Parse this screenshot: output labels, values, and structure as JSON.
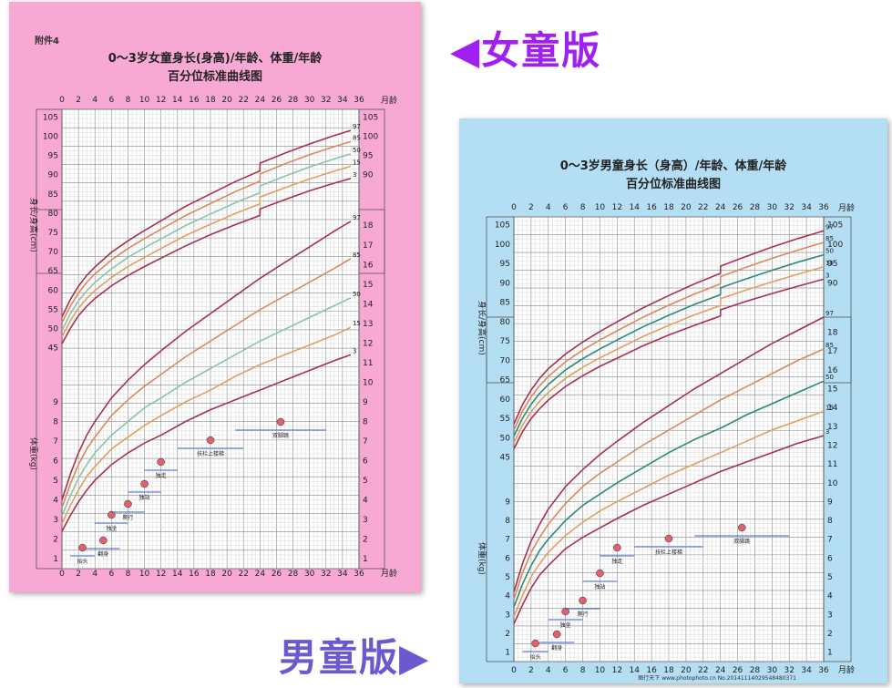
{
  "captions": {
    "girl": "◀女童版",
    "boy": "男童版▶"
  },
  "colors": {
    "girl_bg": "#f7a9d4",
    "boy_bg": "#b3def4",
    "grid": "#9a9a9a",
    "curve_97": "#a8304f",
    "curve_85": "#d88a5c",
    "curve_50_girl": "#88c4ac",
    "curve_50_boy": "#2a8a7c",
    "curve_15": "#e0a060",
    "curve_3": "#a8304f",
    "caption_girl": "#a020f0",
    "caption_boy": "#6a5acd"
  },
  "girl_chart": {
    "attachment_label": "附件4",
    "title_line1": "0～3岁女童身长(身高)/年龄、体重/年龄",
    "title_line2": "百分位标准曲线图",
    "x_unit": "月龄",
    "height_axis_label": "身长/身高(cm)",
    "weight_axis_label": "体重(kg)",
    "milestones": [
      "抬头",
      "翻身",
      "独坐",
      "爬行",
      "独站",
      "独走",
      "扶栏上楼梯",
      "双脚跳"
    ]
  },
  "boy_chart": {
    "title_line1": "0～3岁男童身长（身高）/年龄、体重/年龄",
    "title_line2": "百分位标准曲线图",
    "x_unit": "月龄",
    "height_axis_label": "身长/身高(cm)",
    "weight_axis_label": "体重(kg)",
    "milestones": [
      "抬头",
      "翻身",
      "独坐",
      "爬行",
      "独站",
      "独走",
      "扶栏上楼梯",
      "双脚跳"
    ],
    "footer": "图行天下 www.photophoto.cn No.20141114029548480371"
  },
  "chart_data": [
    {
      "type": "line",
      "name_hint": "girl",
      "x_ticks": [
        0,
        2,
        4,
        6,
        8,
        10,
        12,
        14,
        16,
        18,
        20,
        22,
        24,
        26,
        28,
        30,
        32,
        34,
        36
      ],
      "xlim": [
        0,
        36
      ],
      "height_ticks": [
        45,
        50,
        55,
        60,
        65,
        70,
        75,
        80,
        85,
        90,
        95,
        100,
        105
      ],
      "height_ylim": [
        43,
        107
      ],
      "weight_ticks": [
        1,
        2,
        3,
        4,
        5,
        6,
        7,
        8,
        9,
        10,
        11,
        12,
        13,
        14,
        15,
        16,
        17,
        18
      ],
      "weight_ylim": [
        0.5,
        18.8
      ],
      "x": [
        0,
        1,
        2,
        3,
        4,
        6,
        8,
        10,
        12,
        15,
        18,
        21,
        24,
        24.01,
        27,
        30,
        33,
        35
      ],
      "height_series": [
        {
          "name": "97",
          "values": [
            53.0,
            57.5,
            61.0,
            63.8,
            66.0,
            69.8,
            72.8,
            75.5,
            78.0,
            81.8,
            85.0,
            88.2,
            91.0,
            93.0,
            95.6,
            98.0,
            100.2,
            101.5
          ]
        },
        {
          "name": "85",
          "values": [
            51.5,
            55.8,
            59.2,
            62.0,
            64.2,
            67.8,
            70.8,
            73.4,
            75.8,
            79.4,
            82.5,
            85.6,
            88.3,
            90.2,
            92.8,
            95.2,
            97.3,
            98.6
          ]
        },
        {
          "name": "50",
          "values": [
            49.5,
            53.8,
            57.2,
            59.8,
            62.0,
            65.5,
            68.5,
            71.0,
            73.3,
            76.8,
            79.8,
            82.7,
            85.3,
            87.1,
            89.6,
            92.0,
            94.1,
            95.4
          ]
        },
        {
          "name": "15",
          "values": [
            47.8,
            52.0,
            55.3,
            57.8,
            59.9,
            63.3,
            66.1,
            68.5,
            70.8,
            74.2,
            77.1,
            79.9,
            82.4,
            84.2,
            86.6,
            88.9,
            90.9,
            92.2
          ]
        },
        {
          "name": "3",
          "values": [
            46.0,
            50.0,
            53.3,
            55.8,
            57.8,
            61.1,
            63.8,
            66.1,
            68.3,
            71.5,
            74.4,
            77.0,
            79.4,
            81.1,
            83.5,
            85.8,
            87.8,
            89.0
          ]
        }
      ],
      "weight_series": [
        {
          "name": "97",
          "values": [
            4.0,
            5.3,
            6.4,
            7.3,
            8.0,
            9.2,
            10.1,
            10.9,
            11.6,
            12.6,
            13.5,
            14.4,
            15.3,
            15.3,
            16.1,
            16.9,
            17.7,
            18.2
          ]
        },
        {
          "name": "85",
          "values": [
            3.6,
            4.8,
            5.8,
            6.6,
            7.2,
            8.3,
            9.1,
            9.8,
            10.4,
            11.3,
            12.1,
            12.9,
            13.7,
            13.7,
            14.4,
            15.1,
            15.8,
            16.3
          ]
        },
        {
          "name": "50",
          "values": [
            3.2,
            4.2,
            5.1,
            5.8,
            6.4,
            7.3,
            8.0,
            8.7,
            9.2,
            10.0,
            10.7,
            11.4,
            12.1,
            12.1,
            12.7,
            13.3,
            13.9,
            14.3
          ]
        },
        {
          "name": "15",
          "values": [
            2.8,
            3.7,
            4.5,
            5.2,
            5.7,
            6.6,
            7.2,
            7.8,
            8.3,
            9.0,
            9.6,
            10.3,
            10.9,
            10.9,
            11.4,
            11.9,
            12.4,
            12.8
          ]
        },
        {
          "name": "3",
          "values": [
            2.4,
            3.2,
            3.9,
            4.5,
            5.0,
            5.8,
            6.4,
            6.9,
            7.3,
            8.0,
            8.6,
            9.1,
            9.6,
            9.6,
            10.1,
            10.6,
            11.1,
            11.4
          ]
        }
      ]
    },
    {
      "type": "line",
      "name_hint": "boy",
      "x_ticks": [
        0,
        2,
        4,
        6,
        8,
        10,
        12,
        14,
        16,
        18,
        20,
        22,
        24,
        26,
        28,
        30,
        32,
        34,
        36
      ],
      "xlim": [
        0,
        36
      ],
      "height_ticks": [
        45,
        50,
        55,
        60,
        65,
        70,
        75,
        80,
        85,
        90,
        95,
        100,
        105
      ],
      "height_ylim": [
        43,
        107
      ],
      "weight_ticks": [
        1,
        2,
        3,
        4,
        5,
        6,
        7,
        8,
        9,
        10,
        11,
        12,
        13,
        14,
        15,
        16,
        17,
        18
      ],
      "weight_ylim": [
        0.5,
        18.8
      ],
      "x": [
        0,
        1,
        2,
        3,
        4,
        6,
        8,
        10,
        12,
        15,
        18,
        21,
        24,
        24.01,
        27,
        30,
        33,
        36
      ],
      "height_series": [
        {
          "name": "97",
          "values": [
            53.5,
            58.5,
            62.3,
            65.3,
            67.8,
            71.6,
            74.7,
            77.4,
            79.9,
            83.5,
            86.7,
            89.7,
            92.4,
            94.3,
            96.8,
            99.2,
            101.4,
            103.4
          ]
        },
        {
          "name": "85",
          "values": [
            52.0,
            56.8,
            60.5,
            63.4,
            65.8,
            69.6,
            72.6,
            75.2,
            77.6,
            81.1,
            84.2,
            87.1,
            89.7,
            91.6,
            94.0,
            96.3,
            98.4,
            100.4
          ]
        },
        {
          "name": "50",
          "values": [
            50.4,
            55.0,
            58.6,
            61.4,
            63.7,
            67.5,
            70.4,
            72.9,
            75.2,
            78.6,
            81.6,
            84.4,
            86.9,
            88.7,
            91.0,
            93.2,
            95.3,
            97.2
          ]
        },
        {
          "name": "15",
          "values": [
            48.7,
            53.2,
            56.7,
            59.4,
            61.7,
            65.3,
            68.2,
            70.6,
            72.8,
            76.1,
            79.0,
            81.7,
            84.1,
            85.9,
            88.1,
            90.2,
            92.2,
            94.1
          ]
        },
        {
          "name": "3",
          "values": [
            47.1,
            51.5,
            54.9,
            57.5,
            59.7,
            63.2,
            66.0,
            68.4,
            70.5,
            73.7,
            76.5,
            79.0,
            81.4,
            83.0,
            85.2,
            87.2,
            89.1,
            90.9
          ]
        }
      ],
      "weight_series": [
        {
          "name": "97",
          "values": [
            4.2,
            5.7,
            6.9,
            7.8,
            8.6,
            9.8,
            10.7,
            11.5,
            12.2,
            13.2,
            14.1,
            15.0,
            15.8,
            15.8,
            16.6,
            17.4,
            18.1,
            18.8
          ]
        },
        {
          "name": "85",
          "values": [
            3.8,
            5.2,
            6.3,
            7.1,
            7.8,
            8.9,
            9.8,
            10.5,
            11.1,
            12.0,
            12.8,
            13.6,
            14.4,
            14.4,
            15.1,
            15.8,
            16.5,
            17.1
          ]
        },
        {
          "name": "50",
          "values": [
            3.4,
            4.6,
            5.6,
            6.4,
            7.0,
            8.0,
            8.8,
            9.4,
            10.0,
            10.8,
            11.6,
            12.3,
            12.9,
            12.9,
            13.6,
            14.2,
            14.8,
            15.4
          ]
        },
        {
          "name": "15",
          "values": [
            2.9,
            4.0,
            5.0,
            5.7,
            6.3,
            7.2,
            7.9,
            8.5,
            9.0,
            9.7,
            10.4,
            11.0,
            11.6,
            11.6,
            12.2,
            12.8,
            13.3,
            13.8
          ]
        },
        {
          "name": "3",
          "values": [
            2.5,
            3.5,
            4.4,
            5.1,
            5.6,
            6.5,
            7.1,
            7.6,
            8.1,
            8.8,
            9.4,
            10.0,
            10.6,
            10.6,
            11.1,
            11.6,
            12.1,
            12.5
          ]
        }
      ]
    }
  ]
}
